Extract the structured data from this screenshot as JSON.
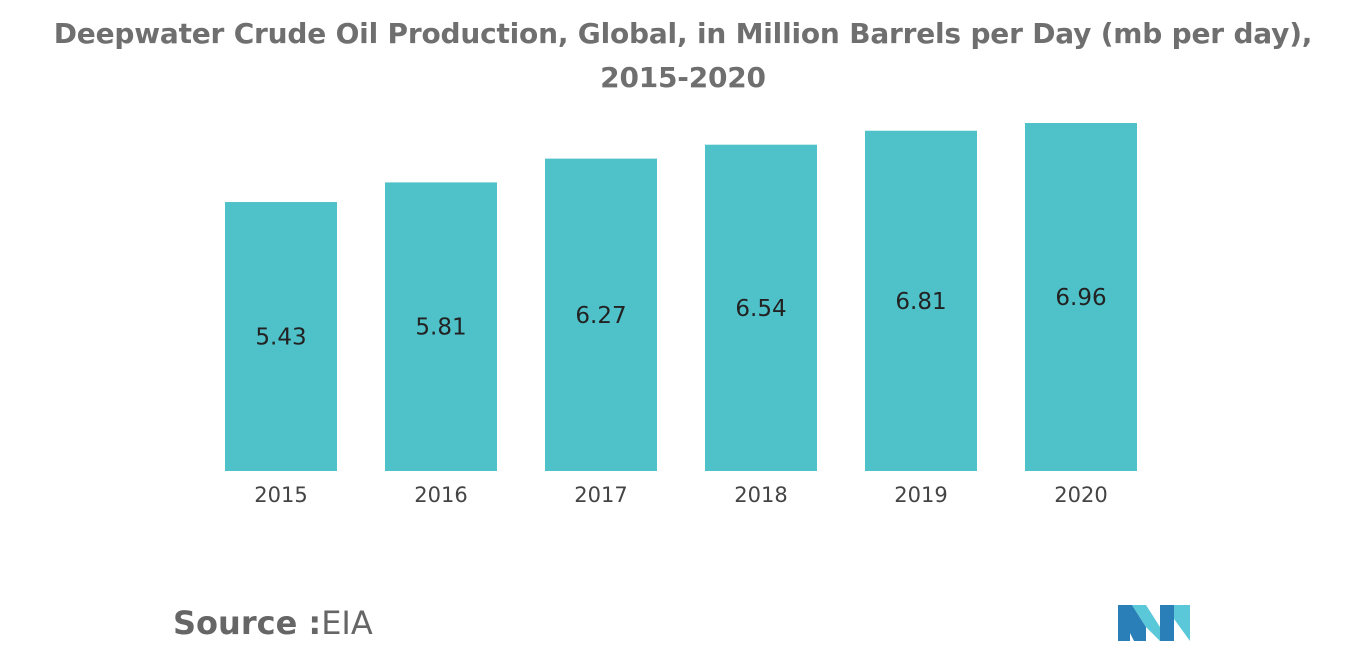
{
  "title": "Deepwater Crude Oil Production, Global, in Million Barrels per Day (mb per day), 2015-2020",
  "source": {
    "label": "Source :",
    "value": "EIA"
  },
  "colors": {
    "bar": "#4fc1c9",
    "title": "#6f6f6f"
  },
  "chart_data": {
    "type": "bar",
    "title": "Deepwater Crude Oil Production, Global, in Million Barrels per Day (mb per day), 2015-2020",
    "categories": [
      "2015",
      "2016",
      "2017",
      "2018",
      "2019",
      "2020"
    ],
    "values": [
      5.43,
      5.81,
      6.27,
      6.54,
      6.81,
      6.96
    ],
    "value_labels": [
      "5.43",
      "5.81",
      "6.27",
      "6.54",
      "6.81",
      "6.96"
    ],
    "xlabel": "",
    "ylabel": "",
    "grid": false,
    "legend": "none"
  }
}
